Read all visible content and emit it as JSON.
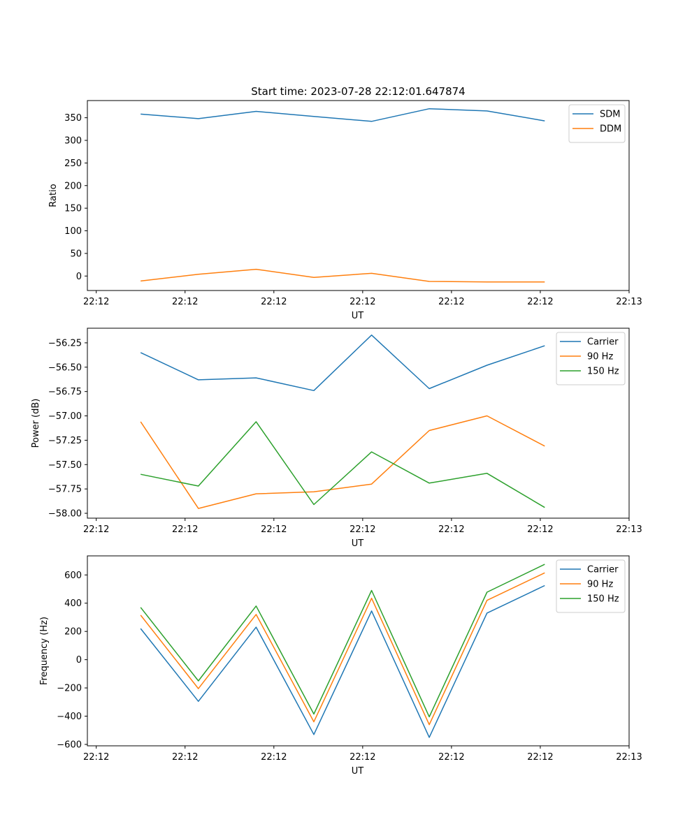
{
  "figure": {
    "title": "Start time: 2023-07-28 22:12:01.647874"
  },
  "colors": {
    "blue": "#1f77b4",
    "orange": "#ff7f0e",
    "green": "#2ca02c"
  },
  "chart_data": [
    {
      "type": "line",
      "title": "Start time: 2023-07-28 22:12:01.647874",
      "xlabel": "UT",
      "ylabel": "Ratio",
      "x_tick_labels": [
        "22:12",
        "22:12",
        "22:12",
        "22:12",
        "22:12",
        "22:12",
        "22:13"
      ],
      "x_tick_positions": [
        0,
        1,
        2,
        3,
        4,
        5,
        6
      ],
      "xlim": [
        -0.1,
        6.0
      ],
      "x": [
        0.5,
        1.15,
        1.8,
        2.45,
        3.1,
        3.75,
        4.4,
        5.05
      ],
      "ylim": [
        -32,
        388
      ],
      "y_ticks": [
        0,
        50,
        100,
        150,
        200,
        250,
        300,
        350
      ],
      "legend": "top-right",
      "series": [
        {
          "name": "SDM",
          "color": "#1f77b4",
          "values": [
            358,
            348,
            364,
            353,
            342,
            370,
            365,
            343
          ]
        },
        {
          "name": "DDM",
          "color": "#ff7f0e",
          "values": [
            -11,
            4,
            15,
            -3,
            6,
            -12,
            -13,
            -13
          ]
        }
      ]
    },
    {
      "type": "line",
      "title": "",
      "xlabel": "UT",
      "ylabel": "Power (dB)",
      "x_tick_labels": [
        "22:12",
        "22:12",
        "22:12",
        "22:12",
        "22:12",
        "22:12",
        "22:13"
      ],
      "x_tick_positions": [
        0,
        1,
        2,
        3,
        4,
        5,
        6
      ],
      "xlim": [
        -0.1,
        6.0
      ],
      "x": [
        0.5,
        1.15,
        1.8,
        2.45,
        3.1,
        3.75,
        4.4,
        5.05
      ],
      "ylim": [
        -58.05,
        -56.1
      ],
      "y_ticks": [
        -58.0,
        -57.75,
        -57.5,
        -57.25,
        -57.0,
        -56.75,
        -56.5,
        -56.25
      ],
      "y_tick_labels": [
        "−58.00",
        "−57.75",
        "−57.50",
        "−57.25",
        "−57.00",
        "−56.75",
        "−56.50",
        "−56.25"
      ],
      "legend": "top-right",
      "series": [
        {
          "name": "Carrier",
          "color": "#1f77b4",
          "values": [
            -56.35,
            -56.63,
            -56.61,
            -56.74,
            -56.17,
            -56.72,
            -56.48,
            -56.28
          ]
        },
        {
          "name": "90 Hz",
          "color": "#ff7f0e",
          "values": [
            -57.06,
            -57.95,
            -57.8,
            -57.78,
            -57.7,
            -57.15,
            -57.0,
            -57.31
          ]
        },
        {
          "name": "150 Hz",
          "color": "#2ca02c",
          "values": [
            -57.6,
            -57.72,
            -57.06,
            -57.91,
            -57.37,
            -57.69,
            -57.59,
            -57.94
          ]
        }
      ]
    },
    {
      "type": "line",
      "title": "",
      "xlabel": "UT",
      "ylabel": "Frequency (Hz)",
      "x_tick_labels": [
        "22:12",
        "22:12",
        "22:12",
        "22:12",
        "22:12",
        "22:12",
        "22:13"
      ],
      "x_tick_positions": [
        0,
        1,
        2,
        3,
        4,
        5,
        6
      ],
      "xlim": [
        -0.1,
        6.0
      ],
      "x": [
        0.5,
        1.15,
        1.8,
        2.45,
        3.1,
        3.75,
        4.4,
        5.05
      ],
      "ylim": [
        -610,
        735
      ],
      "y_ticks": [
        -600,
        -400,
        -200,
        0,
        200,
        400,
        600
      ],
      "y_tick_labels": [
        "−600",
        "−400",
        "−200",
        "0",
        "200",
        "400",
        "600"
      ],
      "legend": "top-right",
      "series": [
        {
          "name": "Carrier",
          "color": "#1f77b4",
          "values": [
            220,
            -295,
            230,
            -530,
            345,
            -550,
            330,
            525
          ]
        },
        {
          "name": "90 Hz",
          "color": "#ff7f0e",
          "values": [
            315,
            -205,
            320,
            -440,
            435,
            -460,
            420,
            615
          ]
        },
        {
          "name": "150 Hz",
          "color": "#2ca02c",
          "values": [
            370,
            -150,
            380,
            -385,
            490,
            -405,
            478,
            675
          ]
        }
      ]
    }
  ]
}
